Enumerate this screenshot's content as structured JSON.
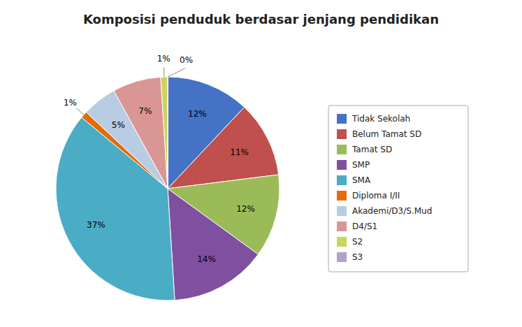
{
  "chart_data": {
    "type": "pie",
    "title": "Komposisi penduduk berdasar jenjang pendidikan",
    "categories": [
      "Tidak Sekolah",
      "Belum Tamat SD",
      "Tamat SD",
      "SMP",
      "SMA",
      "Diploma I/II",
      "Akademi/D3/S.Mud",
      "D4/S1",
      "S2",
      "S3"
    ],
    "values": [
      12,
      11,
      12,
      14,
      37,
      1,
      5,
      7,
      1,
      0
    ],
    "value_labels": [
      "12%",
      "11%",
      "12%",
      "14%",
      "37%",
      "1%",
      "5%",
      "7%",
      "1%",
      "0%"
    ],
    "colors": [
      "#4472C4",
      "#C0504D",
      "#9BBB59",
      "#7F4FA0",
      "#4BACC6",
      "#E36C09",
      "#B8CCE4",
      "#DA9694",
      "#CDD45B",
      "#B3A2C7"
    ],
    "data_labels": true,
    "legend": "right"
  }
}
